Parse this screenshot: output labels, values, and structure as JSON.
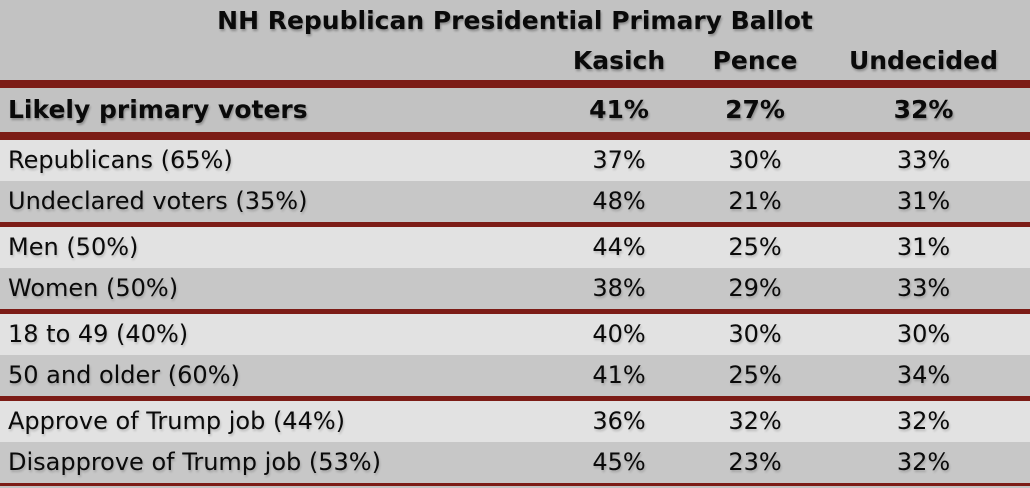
{
  "colors": {
    "background_gray": "#c2c2c2",
    "row_light": "#e2e2e2",
    "row_dark": "#c7c7c7",
    "separator_maroon": "#7c1c16",
    "text": "#0a0a0a"
  },
  "chart_data": {
    "type": "table",
    "title": "NH Republican Presidential Primary Ballot",
    "columns": [
      "Kasich",
      "Pence",
      "Undecided"
    ],
    "rows": [
      {
        "label": "Likely primary voters",
        "kasich": "41%",
        "pence": "27%",
        "undecided": "32%"
      },
      {
        "label": "Republicans (65%)",
        "kasich": "37%",
        "pence": "30%",
        "undecided": "33%"
      },
      {
        "label": "Undeclared voters (35%)",
        "kasich": "48%",
        "pence": "21%",
        "undecided": "31%"
      },
      {
        "label": "Men (50%)",
        "kasich": "44%",
        "pence": "25%",
        "undecided": "31%"
      },
      {
        "label": "Women (50%)",
        "kasich": "38%",
        "pence": "29%",
        "undecided": "33%"
      },
      {
        "label": "18 to 49 (40%)",
        "kasich": "40%",
        "pence": "30%",
        "undecided": "30%"
      },
      {
        "label": "50 and older (60%)",
        "kasich": "41%",
        "pence": "25%",
        "undecided": "34%"
      },
      {
        "label": "Approve of Trump job (44%)",
        "kasich": "36%",
        "pence": "32%",
        "undecided": "32%"
      },
      {
        "label": "Disapprove of Trump job (53%)",
        "kasich": "45%",
        "pence": "23%",
        "undecided": "32%"
      }
    ]
  }
}
